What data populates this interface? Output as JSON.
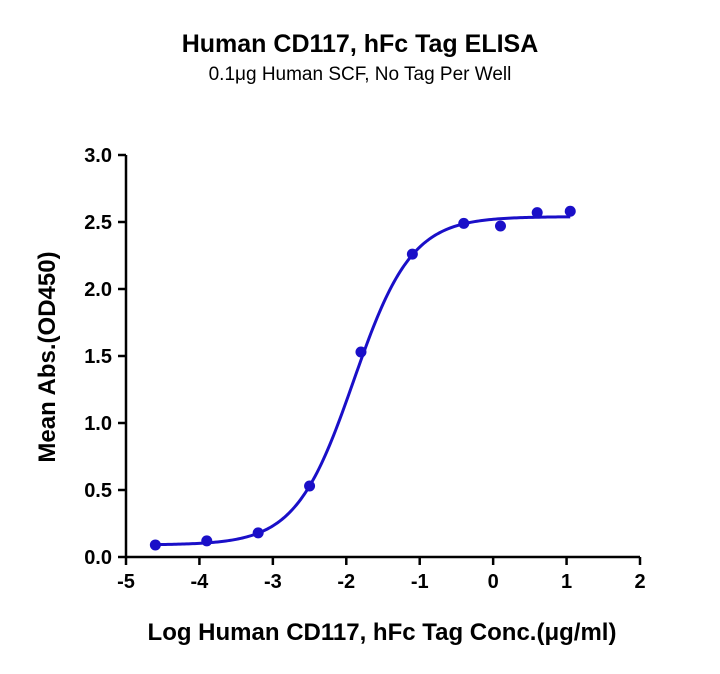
{
  "chart_data": {
    "type": "scatter",
    "title": "Human CD117, hFc Tag ELISA",
    "subtitle": "0.1μg Human SCF, No Tag Per Well",
    "xlabel": "Log Human CD117, hFc Tag Conc.(μg/ml)",
    "ylabel": "Mean Abs.(OD450)",
    "xlim": [
      -5,
      2
    ],
    "ylim": [
      0,
      3.0
    ],
    "xticks": [
      -5,
      -4,
      -3,
      -2,
      -1,
      0,
      1,
      2
    ],
    "xtick_labels": [
      "-5",
      "-4",
      "-3",
      "-2",
      "-1",
      "0",
      "1",
      "2"
    ],
    "yticks": [
      0,
      0.5,
      1.0,
      1.5,
      2.0,
      2.5,
      3.0
    ],
    "ytick_labels": [
      "0.0",
      "0.5",
      "1.0",
      "1.5",
      "2.0",
      "2.5",
      "3.0"
    ],
    "grid": false,
    "series": [
      {
        "points": {
          "x": [
            -4.6,
            -3.9,
            -3.2,
            -2.5,
            -1.8,
            -1.1,
            -0.4,
            0.1,
            0.6,
            1.05
          ],
          "y": [
            0.09,
            0.12,
            0.18,
            0.53,
            1.53,
            2.26,
            2.49,
            2.47,
            2.57,
            2.58
          ]
        },
        "fit_curve": {
          "bottom": 0.09,
          "top": 2.54,
          "log_ec50": -1.9,
          "hill_slope": 1.1,
          "x_range": [
            -4.6,
            1.05
          ]
        },
        "color": "#1a0fc8"
      }
    ]
  }
}
